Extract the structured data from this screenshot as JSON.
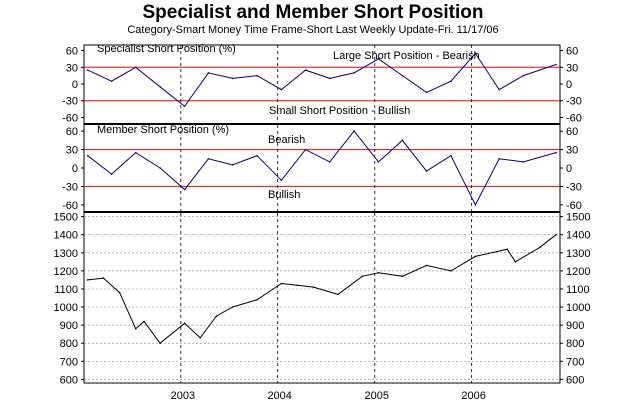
{
  "title": "Specialist and Member Short Position",
  "subtitle": "Category-Smart Money      Time Frame-Short      Last Weekly Update-Fri. 11/17/06",
  "chart_data": [
    {
      "type": "line",
      "label": "Specialist Short Position (%)",
      "annotations": [
        "Large Short Position - Bearish",
        "Small Short Position - Bullish"
      ],
      "yticks": [
        60,
        30,
        0,
        -30,
        -60
      ],
      "ylim": [
        -70,
        70
      ],
      "reference_lines": [
        30,
        -30
      ],
      "reference_color": "#ff0000",
      "line_color": "#000080",
      "x": [
        "2002-01",
        "2002-04",
        "2002-07",
        "2002-10",
        "2003-01",
        "2003-04",
        "2003-07",
        "2003-10",
        "2004-01",
        "2004-04",
        "2004-07",
        "2004-10",
        "2005-01",
        "2005-04",
        "2005-07",
        "2005-10",
        "2006-01",
        "2006-04",
        "2006-07",
        "2006-11"
      ],
      "y": [
        25,
        5,
        30,
        -5,
        -40,
        20,
        10,
        15,
        -10,
        25,
        10,
        20,
        45,
        15,
        -15,
        5,
        55,
        -10,
        15,
        35
      ]
    },
    {
      "type": "line",
      "label": "Member Short Position (%)",
      "annotations": [
        "Bearish",
        "Bullish"
      ],
      "yticks": [
        60,
        30,
        0,
        -30,
        -60
      ],
      "ylim": [
        -70,
        70
      ],
      "reference_lines": [
        30,
        -30
      ],
      "reference_color": "#ff0000",
      "line_color": "#000080",
      "x": [
        "2002-01",
        "2002-04",
        "2002-07",
        "2002-10",
        "2003-01",
        "2003-04",
        "2003-07",
        "2003-10",
        "2004-01",
        "2004-04",
        "2004-07",
        "2004-10",
        "2005-01",
        "2005-04",
        "2005-07",
        "2005-10",
        "2006-01",
        "2006-04",
        "2006-07",
        "2006-11"
      ],
      "y": [
        20,
        -10,
        25,
        0,
        -35,
        15,
        5,
        20,
        -20,
        30,
        10,
        60,
        10,
        45,
        -5,
        20,
        -60,
        15,
        10,
        25
      ]
    },
    {
      "type": "line",
      "label": "",
      "yticks": [
        1500,
        1400,
        1300,
        1200,
        1100,
        1000,
        900,
        800,
        700,
        600
      ],
      "ylim": [
        600,
        1520
      ],
      "line_color": "#000000",
      "xticks": [
        "2003",
        "2004",
        "2005",
        "2006"
      ],
      "x": [
        "2002-01",
        "2002-03",
        "2002-05",
        "2002-07",
        "2002-08",
        "2002-10",
        "2003-01",
        "2003-03",
        "2003-05",
        "2003-07",
        "2003-10",
        "2004-01",
        "2004-03",
        "2004-05",
        "2004-08",
        "2004-11",
        "2005-01",
        "2005-04",
        "2005-07",
        "2005-10",
        "2006-01",
        "2006-05",
        "2006-06",
        "2006-09",
        "2006-11"
      ],
      "y": [
        1150,
        1160,
        1080,
        880,
        920,
        800,
        910,
        830,
        950,
        1000,
        1040,
        1130,
        1120,
        1110,
        1070,
        1170,
        1190,
        1170,
        1230,
        1200,
        1280,
        1320,
        1250,
        1330,
        1400
      ]
    }
  ]
}
